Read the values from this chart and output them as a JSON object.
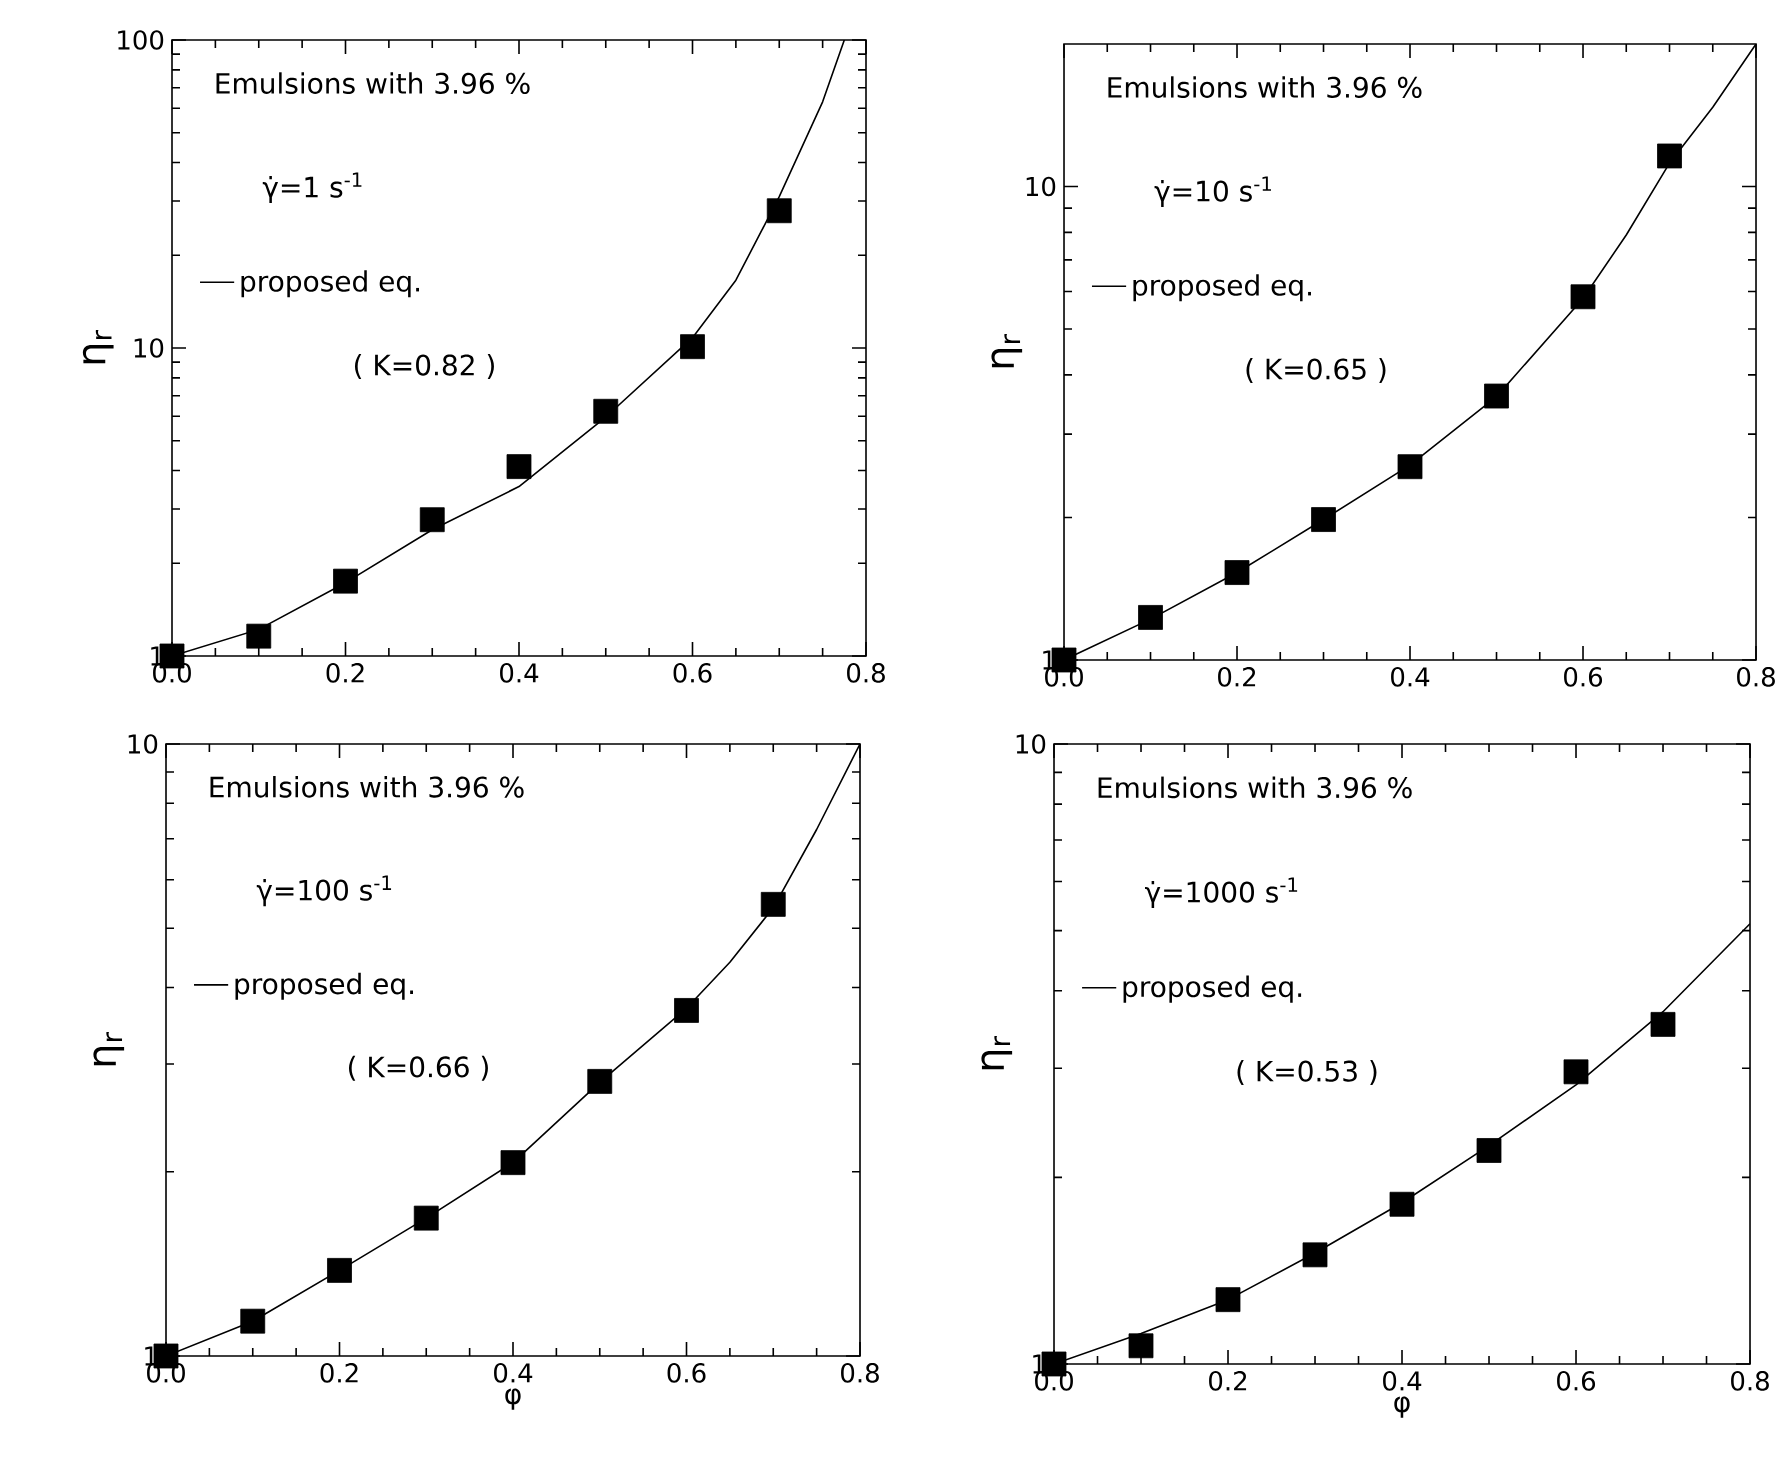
{
  "chart_data": [
    {
      "type": "scatter",
      "ylabel": "η$_{r}$",
      "log": "y",
      "legend": "top left",
      "xlim": [
        0,
        0.8
      ],
      "ylim": [
        1,
        100
      ],
      "xticks": [
        {
          "value": 0,
          "label": "0.0"
        },
        {
          "value": 0.2,
          "label": "0.2"
        },
        {
          "value": 0.4,
          "label": "0.4"
        },
        {
          "value": 0.6,
          "label": "0.6"
        },
        {
          "value": 0.8,
          "label": "0.8"
        }
      ],
      "yticks": [
        1,
        10,
        100
      ],
      "annotations": [
        "Emulsions with 3.96 %",
        "γ̇=1 s$^{-1}$",
        "( K=0.82 )"
      ],
      "x": [
        0,
        0.1,
        0.2,
        0.3,
        0.4,
        0.5,
        0.6,
        0.7
      ],
      "series": [
        {
          "marker": "square",
          "color": "#000000",
          "values": [
            1,
            1.16,
            1.75,
            2.77,
            4.12,
            6.23,
            10.1,
            27.9
          ]
        },
        {
          "type": "line",
          "name": "proposed eq.",
          "color": "#000000",
          "x": [
            0,
            0.1,
            0.2,
            0.3,
            0.4,
            0.5,
            0.6,
            0.65,
            0.7,
            0.75,
            0.775
          ],
          "values": [
            1,
            1.22,
            1.73,
            2.57,
            3.55,
            5.97,
            10.8,
            16.6,
            31,
            63,
            100
          ]
        }
      ]
    },
    {
      "type": "scatter",
      "ylabel": "η$_{r}$",
      "log": "y",
      "legend": "top left",
      "xlim": [
        0,
        0.8
      ],
      "ylim": [
        1,
        20
      ],
      "xticks": [
        {
          "value": 0,
          "label": "0.0"
        },
        {
          "value": 0.2,
          "label": "0.2"
        },
        {
          "value": 0.4,
          "label": "0.4"
        },
        {
          "value": 0.6,
          "label": "0.6"
        },
        {
          "value": 0.8,
          "label": "0.8"
        }
      ],
      "yticks": [
        1,
        10
      ],
      "annotations": [
        "Emulsions with 3.96 %",
        "γ̇=10 s$^{-1}$",
        "( K=0.65 )"
      ],
      "x": [
        0,
        0.1,
        0.2,
        0.3,
        0.4,
        0.5,
        0.6,
        0.7
      ],
      "series": [
        {
          "marker": "square",
          "color": "#000000",
          "values": [
            1,
            1.23,
            1.53,
            1.98,
            2.56,
            3.61,
            5.85,
            11.6
          ]
        },
        {
          "type": "line",
          "name": "proposed eq.",
          "color": "#000000",
          "x": [
            0,
            0.1,
            0.2,
            0.3,
            0.4,
            0.5,
            0.6,
            0.65,
            0.7,
            0.75,
            0.8
          ],
          "values": [
            1,
            1.22,
            1.53,
            1.98,
            2.58,
            3.6,
            5.8,
            7.9,
            11.2,
            14.7,
            20
          ]
        }
      ]
    },
    {
      "type": "scatter",
      "xlabel": "φ",
      "ylabel": "η$_{r}$",
      "log": "y",
      "legend": "top left",
      "xlim": [
        0,
        0.8
      ],
      "ylim": [
        1,
        10
      ],
      "xticks": [
        {
          "value": 0,
          "label": "0.0"
        },
        {
          "value": 0.2,
          "label": "0.2"
        },
        {
          "value": 0.4,
          "label": "0.4"
        },
        {
          "value": 0.6,
          "label": "0.6"
        },
        {
          "value": 0.8,
          "label": "0.8"
        }
      ],
      "yticks": [
        1,
        10
      ],
      "annotations": [
        "Emulsions with 3.96 %",
        "γ̇=100 s$^{-1}$",
        "( K=0.66 )"
      ],
      "x": [
        0,
        0.1,
        0.2,
        0.3,
        0.4,
        0.5,
        0.6,
        0.7
      ],
      "series": [
        {
          "marker": "square",
          "color": "#000000",
          "values": [
            1,
            1.14,
            1.38,
            1.68,
            2.07,
            2.81,
            3.67,
            5.47
          ]
        },
        {
          "type": "line",
          "name": "proposed eq.",
          "color": "#000000",
          "x": [
            0,
            0.1,
            0.2,
            0.3,
            0.4,
            0.5,
            0.6,
            0.65,
            0.7,
            0.75,
            0.8
          ],
          "values": [
            1,
            1.14,
            1.38,
            1.68,
            2.07,
            2.8,
            3.7,
            4.4,
            5.4,
            7.25,
            10
          ]
        }
      ]
    },
    {
      "type": "scatter",
      "xlabel": "φ",
      "ylabel": "η$_{r}$",
      "log": "y",
      "legend": "top left",
      "xlim": [
        0,
        0.8
      ],
      "ylim": [
        1,
        10
      ],
      "xticks": [
        {
          "value": 0,
          "label": "0.0"
        },
        {
          "value": 0.2,
          "label": "0.2"
        },
        {
          "value": 0.4,
          "label": "0.4"
        },
        {
          "value": 0.6,
          "label": "0.6"
        },
        {
          "value": 0.8,
          "label": "0.8"
        }
      ],
      "yticks": [
        1,
        10
      ],
      "annotations": [
        "Emulsions with 3.96 %",
        "γ̇=1000 s$^{-1}$",
        "( K=0.53 )"
      ],
      "x": [
        0,
        0.1,
        0.2,
        0.3,
        0.4,
        0.5,
        0.6,
        0.7
      ],
      "series": [
        {
          "marker": "square",
          "color": "#000000",
          "values": [
            1,
            1.07,
            1.27,
            1.5,
            1.81,
            2.21,
            2.96,
            3.53
          ]
        },
        {
          "type": "line",
          "name": "proposed eq.",
          "color": "#000000",
          "x": [
            0,
            0.1,
            0.2,
            0.3,
            0.4,
            0.5,
            0.6,
            0.7,
            0.8
          ],
          "values": [
            1,
            1.12,
            1.27,
            1.51,
            1.82,
            2.25,
            2.82,
            3.7,
            5.13
          ]
        }
      ]
    }
  ]
}
